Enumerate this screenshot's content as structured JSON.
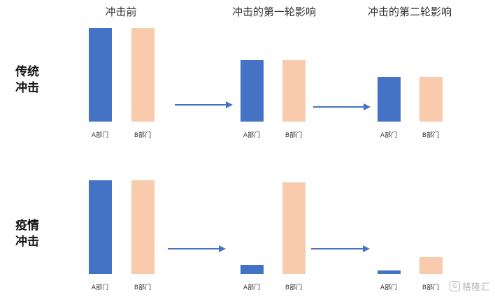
{
  "columns": [
    {
      "title": "冲击前"
    },
    {
      "title": "冲击的第一轮影响"
    },
    {
      "title": "冲击的第二轮影响"
    }
  ],
  "rows": [
    {
      "title": "传统\n冲击"
    },
    {
      "title": "疫情\n冲击"
    }
  ],
  "bar_labels": {
    "a": "A部门",
    "b": "B部门"
  },
  "chart_data": {
    "type": "bar",
    "categories": [
      "A部门",
      "B部门"
    ],
    "panels": [
      {
        "row": "传统冲击",
        "column": "冲击前",
        "values": [
          1.0,
          1.0
        ]
      },
      {
        "row": "传统冲击",
        "column": "冲击的第一轮影响",
        "values": [
          0.66,
          0.66
        ]
      },
      {
        "row": "传统冲击",
        "column": "冲击的第二轮影响",
        "values": [
          0.48,
          0.48
        ]
      },
      {
        "row": "疫情冲击",
        "column": "冲击前",
        "values": [
          1.0,
          1.0
        ]
      },
      {
        "row": "疫情冲击",
        "column": "冲击的第一轮影响",
        "values": [
          0.1,
          0.98
        ]
      },
      {
        "row": "疫情冲击",
        "column": "冲击的第二轮影响",
        "values": [
          0.04,
          0.18
        ]
      }
    ]
  },
  "colors": {
    "a": "#4472c4",
    "b": "#f8cbad",
    "arrow": "#4472c4"
  },
  "watermark": {
    "icon": "G",
    "text": "格隆汇"
  }
}
